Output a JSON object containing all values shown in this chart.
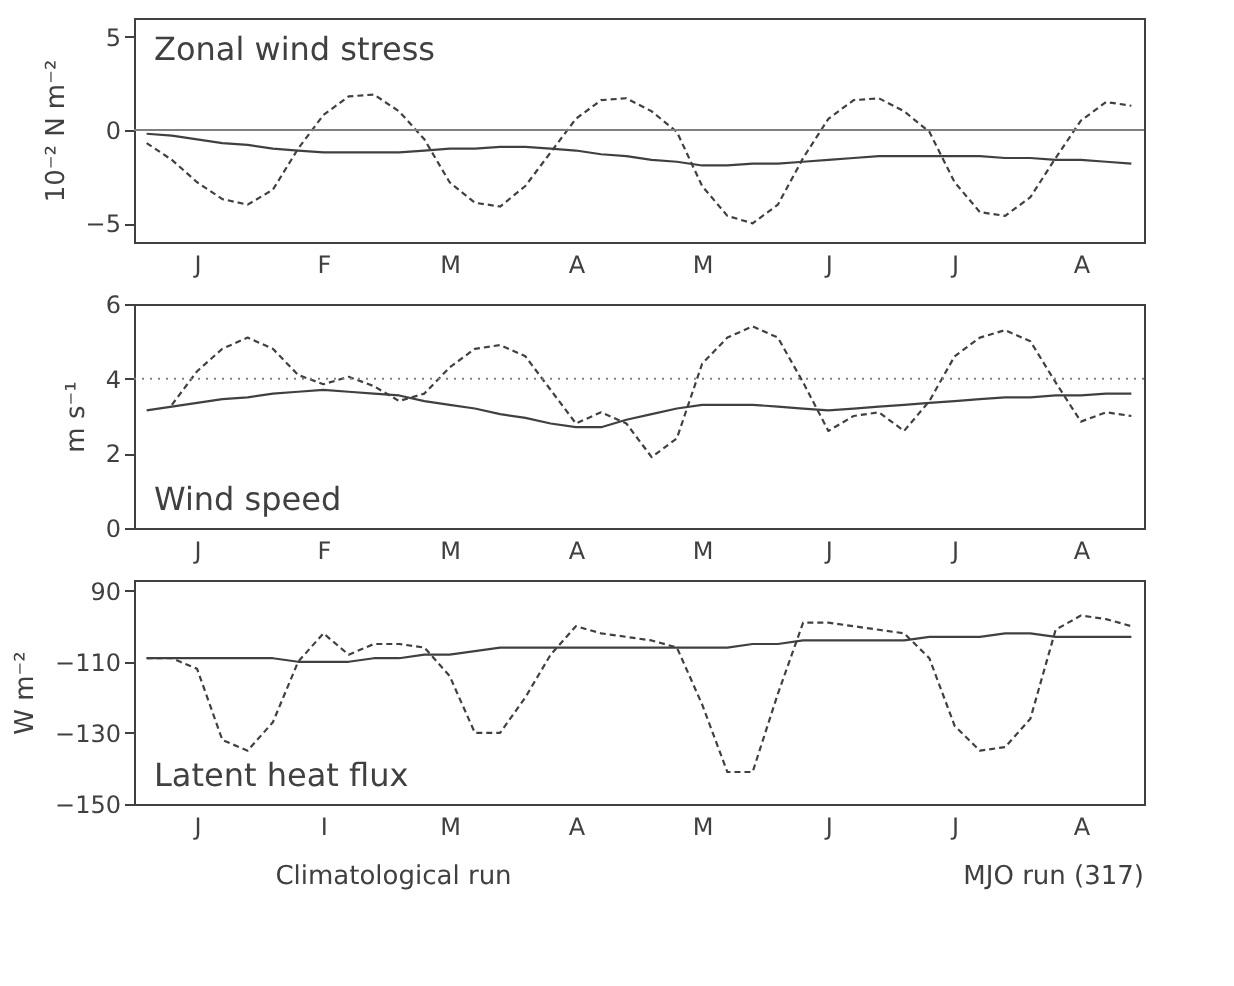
{
  "chart_data": [
    {
      "type": "line",
      "title": "Zonal wind stress",
      "ylabel": "10⁻² N m⁻²",
      "categories": [
        null,
        null,
        "J",
        null,
        null,
        null,
        null,
        "F",
        null,
        null,
        null,
        null,
        "M",
        null,
        null,
        null,
        null,
        "A",
        null,
        null,
        null,
        null,
        "M",
        null,
        null,
        null,
        null,
        "J",
        null,
        null,
        null,
        null,
        "J",
        null,
        null,
        null,
        null,
        "A",
        null,
        null
      ],
      "ylim": [
        -6,
        6
      ],
      "yticks": [
        -5,
        0,
        5
      ],
      "grid": false,
      "ref_lines": [
        {
          "axis": "y",
          "value": 0,
          "color": "#808080",
          "line_style": "solid"
        }
      ],
      "series": [
        {
          "color": "#404040",
          "line_style": "solid",
          "values": [
            -0.2,
            -0.3,
            -0.5,
            -0.7,
            -0.8,
            -1.0,
            -1.1,
            -1.2,
            -1.2,
            -1.2,
            -1.2,
            -1.1,
            -1.0,
            -1.0,
            -0.9,
            -0.9,
            -1.0,
            -1.1,
            -1.3,
            -1.4,
            -1.6,
            -1.7,
            -1.9,
            -1.9,
            -1.8,
            -1.8,
            -1.7,
            -1.6,
            -1.5,
            -1.4,
            -1.4,
            -1.4,
            -1.4,
            -1.4,
            -1.5,
            -1.5,
            -1.6,
            -1.6,
            -1.7,
            -1.8
          ]
        },
        {
          "color": "#404040",
          "line_style": "dashed",
          "values": [
            -0.7,
            -1.6,
            -2.8,
            -3.7,
            -4.0,
            -3.2,
            -1.0,
            0.8,
            1.8,
            1.9,
            1.0,
            -0.5,
            -2.8,
            -3.9,
            -4.1,
            -3.0,
            -1.2,
            0.6,
            1.6,
            1.7,
            1.0,
            -0.1,
            -3.0,
            -4.6,
            -5.0,
            -4.0,
            -1.5,
            0.6,
            1.6,
            1.7,
            1.0,
            -0.1,
            -2.8,
            -4.4,
            -4.6,
            -3.6,
            -1.5,
            0.5,
            1.5,
            1.3
          ]
        }
      ]
    },
    {
      "type": "line",
      "title": "Wind speed",
      "ylabel": "m s⁻¹",
      "categories": [
        null,
        null,
        "J",
        null,
        null,
        null,
        null,
        "F",
        null,
        null,
        null,
        null,
        "M",
        null,
        null,
        null,
        null,
        "A",
        null,
        null,
        null,
        null,
        "M",
        null,
        null,
        null,
        null,
        "J",
        null,
        null,
        null,
        null,
        "J",
        null,
        null,
        null,
        null,
        "A",
        null,
        null
      ],
      "ylim": [
        0,
        6
      ],
      "yticks": [
        0,
        2,
        4,
        6
      ],
      "grid": false,
      "ref_lines": [
        {
          "axis": "y",
          "value": 4,
          "color": "#808080",
          "line_style": "dotted"
        }
      ],
      "series": [
        {
          "color": "#404040",
          "line_style": "solid",
          "values": [
            3.15,
            3.25,
            3.35,
            3.45,
            3.5,
            3.6,
            3.65,
            3.7,
            3.65,
            3.6,
            3.55,
            3.4,
            3.3,
            3.2,
            3.05,
            2.95,
            2.8,
            2.7,
            2.7,
            2.9,
            3.05,
            3.2,
            3.3,
            3.3,
            3.3,
            3.25,
            3.2,
            3.15,
            3.2,
            3.25,
            3.3,
            3.35,
            3.4,
            3.45,
            3.5,
            3.5,
            3.55,
            3.55,
            3.6,
            3.6
          ]
        },
        {
          "color": "#404040",
          "line_style": "dashed",
          "values": [
            null,
            3.3,
            4.2,
            4.8,
            5.1,
            4.8,
            4.1,
            3.85,
            4.05,
            3.8,
            3.4,
            3.6,
            4.3,
            4.8,
            4.9,
            4.6,
            3.7,
            2.8,
            3.1,
            2.8,
            1.9,
            2.4,
            4.4,
            5.1,
            5.4,
            5.1,
            3.9,
            2.6,
            3.0,
            3.1,
            2.6,
            3.4,
            4.6,
            5.1,
            5.3,
            5.0,
            3.9,
            2.85,
            3.1,
            3.0
          ]
        }
      ]
    },
    {
      "type": "line",
      "title": "Latent heat flux",
      "ylabel": "W m⁻²",
      "categories": [
        null,
        null,
        "J",
        null,
        null,
        null,
        null,
        "I",
        null,
        null,
        null,
        null,
        "M",
        null,
        null,
        null,
        null,
        "A",
        null,
        null,
        null,
        null,
        "M",
        null,
        null,
        null,
        null,
        "J",
        null,
        null,
        null,
        null,
        "J",
        null,
        null,
        null,
        null,
        "A",
        null,
        null
      ],
      "ylim": [
        -150,
        -87
      ],
      "yticks": [
        {
          "value": -90,
          "label": "90"
        },
        -110,
        -130,
        -150
      ],
      "grid": false,
      "annotations": [
        "Climatological run",
        "MJO run (317)"
      ],
      "series": [
        {
          "color": "#404040",
          "line_style": "solid",
          "values": [
            -109,
            -109,
            -109,
            -109,
            -109,
            -109,
            -110,
            -110,
            -110,
            -109,
            -109,
            -108,
            -108,
            -107,
            -106,
            -106,
            -106,
            -106,
            -106,
            -106,
            -106,
            -106,
            -106,
            -106,
            -105,
            -105,
            -104,
            -104,
            -104,
            -104,
            -104,
            -103,
            -103,
            -103,
            -102,
            -102,
            -103,
            -103,
            -103,
            -103
          ]
        },
        {
          "color": "#404040",
          "line_style": "dashed",
          "values": [
            -109,
            -109,
            -112,
            -132,
            -135,
            -127,
            -110,
            -102,
            -108,
            -105,
            -105,
            -106,
            -114,
            -130,
            -130,
            -120,
            -108,
            -100,
            -102,
            -103,
            -104,
            -106,
            -122,
            -141,
            -141,
            -119,
            -99,
            -99,
            -100,
            -101,
            -102,
            -109,
            -128,
            -135,
            -134,
            -126,
            -101,
            -97,
            -98,
            -100
          ]
        }
      ]
    }
  ]
}
